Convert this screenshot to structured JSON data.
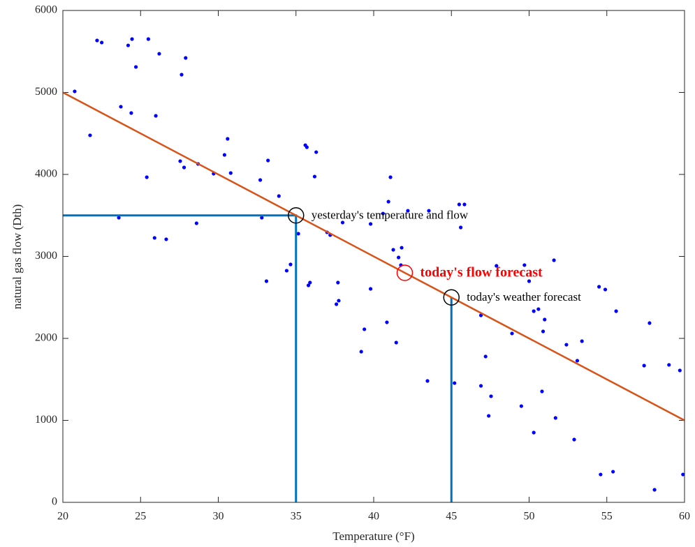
{
  "chart_data": {
    "type": "scatter",
    "x_label": "Temperature (°F)",
    "y_label": "natural gas flow (Dth)",
    "xlim": [
      20,
      60
    ],
    "ylim": [
      0,
      6000
    ],
    "xticks": [
      20,
      25,
      30,
      35,
      40,
      45,
      50,
      55,
      60
    ],
    "yticks": [
      0,
      1000,
      2000,
      3000,
      4000,
      5000,
      6000
    ],
    "grid": false,
    "series": [
      {
        "color": "#0000ff",
        "x": [
          20.76,
          21.75,
          22.2,
          22.5,
          23.6,
          23.73,
          24.2,
          24.45,
          24.4,
          24.7,
          25.4,
          25.5,
          25.9,
          25.98,
          26.2,
          26.65,
          27.64,
          27.9,
          27.55,
          27.8,
          28.6,
          28.7,
          29.7,
          30.4,
          30.6,
          30.8,
          32.7,
          32.8,
          33.2,
          33.1,
          33.9,
          34.4,
          34.65,
          35.15,
          35.6,
          35.7,
          35.8,
          35.9,
          36.3,
          36.2,
          37.0,
          37.2,
          37.7,
          37.75,
          37.6,
          38.0,
          39.2,
          39.4,
          39.8,
          39.8,
          40.6,
          40.85,
          40.95,
          41.08,
          41.26,
          41.45,
          41.6,
          41.8,
          41.75,
          42.2,
          43.55,
          43.46,
          45.2,
          45.5,
          45.6,
          45.84,
          46.9,
          46.9,
          47.2,
          47.4,
          47.55,
          47.9,
          48.9,
          49.5,
          49.7,
          50.0,
          50.3,
          50.6,
          50.9,
          50.83,
          51.0,
          50.3,
          51.6,
          51.7,
          52.9,
          52.4,
          53.1,
          53.4,
          54.5,
          54.9,
          54.6,
          55.4,
          55.6,
          57.4,
          57.75,
          58.07,
          59.0,
          59.7,
          59.9
        ],
        "values": [
          5013,
          4477,
          5634,
          5609,
          3472,
          4826,
          5574,
          5651,
          4749,
          5311,
          3966,
          5651,
          3226,
          4715,
          5472,
          3209,
          5217,
          5421,
          4162,
          4085,
          3404,
          4128,
          4009,
          4238,
          4434,
          4017,
          3932,
          3472,
          4170,
          2698,
          3736,
          2826,
          2902,
          3277,
          4357,
          4332,
          2647,
          2681,
          4272,
          3974,
          3294,
          3260,
          2681,
          2460,
          2417,
          3413,
          1838,
          2111,
          3396,
          2604,
          3523,
          2196,
          3668,
          3966,
          3081,
          1949,
          2987,
          3106,
          2894,
          3557,
          3557,
          1481,
          1455,
          3634,
          3353,
          3634,
          2281,
          1421,
          1779,
          1055,
          1294,
          2885,
          2060,
          1174,
          2894,
          2698,
          2332,
          2357,
          2085,
          1353,
          2230,
          851,
          2953,
          1030,
          766,
          1923,
          1728,
          1966,
          2630,
          2596,
          340,
          374,
          2332,
          1668,
          2187,
          153,
          1677,
          1609,
          340
        ]
      }
    ],
    "fit_line": {
      "color": "#d95319",
      "x": [
        20,
        60
      ],
      "values": [
        5000,
        1000
      ]
    },
    "guides": [
      {
        "color": "#0072bd",
        "x": [
          20,
          35,
          35
        ],
        "values": [
          3500,
          3500,
          0
        ]
      },
      {
        "color": "#0072bd",
        "x": [
          45,
          45
        ],
        "values": [
          2500,
          0
        ]
      }
    ],
    "annotations": [
      {
        "x": 35,
        "y": 3500,
        "text": "yesterday's temperature and flow",
        "color": "#000000",
        "font_weight": "normal"
      },
      {
        "x": 42,
        "y": 2800,
        "text": "today's flow forecast",
        "color": "#ff0000",
        "font_weight": "bold"
      },
      {
        "x": 45,
        "y": 2500,
        "text": "today's weather forecast",
        "color": "#000000",
        "font_weight": "normal"
      }
    ]
  }
}
